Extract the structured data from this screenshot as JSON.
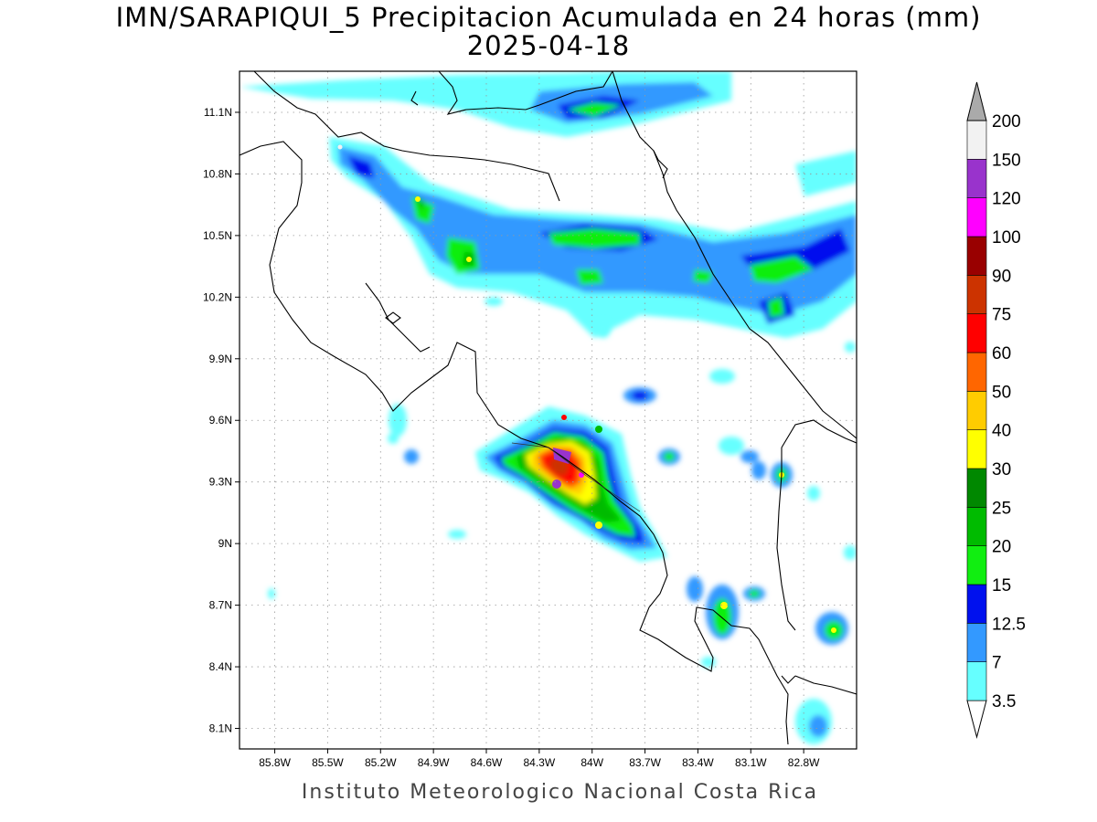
{
  "title": "IMN/SARAPIQUI_5 Precipitacion Acumulada en 24 horas (mm)",
  "date": "2025-04-18",
  "footer": "Instituto Meteorologico Nacional Costa Rica",
  "map": {
    "lon_range": [
      -86.0,
      -82.5
    ],
    "lat_range": [
      8.0,
      11.3
    ],
    "lat_ticks": [
      {
        "value": 11.1,
        "label": "11.1N"
      },
      {
        "value": 10.8,
        "label": "10.8N"
      },
      {
        "value": 10.5,
        "label": "10.5N"
      },
      {
        "value": 10.2,
        "label": "10.2N"
      },
      {
        "value": 9.9,
        "label": "9.9N"
      },
      {
        "value": 9.6,
        "label": "9.6N"
      },
      {
        "value": 9.3,
        "label": "9.3N"
      },
      {
        "value": 9.0,
        "label": "9N"
      },
      {
        "value": 8.7,
        "label": "8.7N"
      },
      {
        "value": 8.4,
        "label": "8.4N"
      },
      {
        "value": 8.1,
        "label": "8.1N"
      }
    ],
    "lon_ticks": [
      {
        "value": -85.8,
        "label": "85.8W"
      },
      {
        "value": -85.5,
        "label": "85.5W"
      },
      {
        "value": -85.2,
        "label": "85.2W"
      },
      {
        "value": -84.9,
        "label": "84.9W"
      },
      {
        "value": -84.6,
        "label": "84.6W"
      },
      {
        "value": -84.3,
        "label": "84.3W"
      },
      {
        "value": -84.0,
        "label": "84W"
      },
      {
        "value": -83.7,
        "label": "83.7W"
      },
      {
        "value": -83.4,
        "label": "83.4W"
      },
      {
        "value": -83.1,
        "label": "83.1W"
      },
      {
        "value": -82.8,
        "label": "82.8W"
      }
    ],
    "grid": true
  },
  "colorbar": {
    "levels": [
      "3.5",
      "7",
      "12.5",
      "15",
      "20",
      "25",
      "30",
      "40",
      "50",
      "60",
      "75",
      "90",
      "100",
      "120",
      "150",
      "200"
    ],
    "colors": [
      "#66ffff",
      "#3399ff",
      "#0011ee",
      "#11ee11",
      "#00bb00",
      "#008800",
      "#ffff00",
      "#ffcc00",
      "#ff6600",
      "#ff0000",
      "#cc3300",
      "#990000",
      "#ff00ff",
      "#9933cc",
      "#f2f2f2",
      "#aaaaaa"
    ],
    "under_color": "#ffffff"
  },
  "rain_cells": [
    {
      "lon": -85.4,
      "lat": 10.9,
      "level": 2
    },
    {
      "lon": -85.1,
      "lat": 10.6,
      "level": 4
    },
    {
      "lon": -84.8,
      "lat": 10.45,
      "level": 4
    },
    {
      "lon": -84.15,
      "lat": 10.52,
      "level": 4
    },
    {
      "lon": -84.05,
      "lat": 10.33,
      "level": 3
    },
    {
      "lon": -83.35,
      "lat": 10.3,
      "level": 3
    },
    {
      "lon": -82.95,
      "lat": 10.35,
      "level": 4
    },
    {
      "lon": -84.0,
      "lat": 11.1,
      "level": 4
    },
    {
      "lon": -84.2,
      "lat": 9.35,
      "level": 13
    },
    {
      "lon": -84.45,
      "lat": 9.4,
      "level": 8
    },
    {
      "lon": -84.0,
      "lat": 9.2,
      "level": 8
    },
    {
      "lon": -83.85,
      "lat": 9.05,
      "level": 5
    },
    {
      "lon": -83.25,
      "lat": 8.65,
      "level": 7
    },
    {
      "lon": -82.6,
      "lat": 8.57,
      "level": 6
    },
    {
      "lon": -83.05,
      "lat": 9.35,
      "level": 6
    },
    {
      "lon": -83.55,
      "lat": 9.4,
      "level": 5
    },
    {
      "lon": -83.7,
      "lat": 9.75,
      "level": 3
    },
    {
      "lon": -82.8,
      "lat": 8.1,
      "level": 1
    },
    {
      "lon": -85.1,
      "lat": 9.55,
      "level": 1
    }
  ]
}
